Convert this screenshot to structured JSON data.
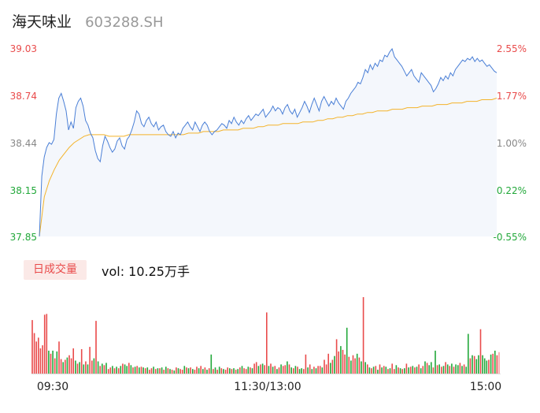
{
  "header": {
    "name": "海天味业",
    "code": "603288.SH"
  },
  "volume_panel": {
    "period_label": "日成交量",
    "vol_label": "vol: 10.25万手"
  },
  "colors": {
    "up": "#e94b4b",
    "down": "#22a83a",
    "price_line": "#4a7fd6",
    "avg_line": "#f3b32a",
    "area_fill": "#f4f7fc"
  },
  "chart_data": [
    {
      "type": "line",
      "title": "",
      "y_ticks_left": [
        "39.03",
        "38.74",
        "38.44",
        "38.15",
        "37.85"
      ],
      "y_ticks_right": [
        "2.55%",
        "1.77%",
        "1.00%",
        "0.22%",
        "-0.55%"
      ],
      "ylim": [
        37.85,
        39.03
      ],
      "x_ticks": [
        "09:30",
        "11:30/13:00",
        "15:00"
      ],
      "series": [
        {
          "values": [
            37.85,
            38.23,
            38.35,
            38.41,
            38.44,
            38.43,
            38.46,
            38.62,
            38.72,
            38.75,
            38.7,
            38.64,
            38.52,
            38.57,
            38.53,
            38.66,
            38.7,
            38.72,
            38.67,
            38.58,
            38.55,
            38.5,
            38.47,
            38.39,
            38.34,
            38.32,
            38.42,
            38.48,
            38.45,
            38.41,
            38.38,
            38.4,
            38.45,
            38.47,
            38.42,
            38.4,
            38.46,
            38.48,
            38.52,
            38.57,
            38.64,
            38.62,
            38.56,
            38.54,
            38.58,
            38.6,
            38.56,
            38.54,
            38.57,
            38.52,
            38.54,
            38.55,
            38.51,
            38.49,
            38.48,
            38.51,
            38.47,
            38.5,
            38.49,
            38.53,
            38.55,
            38.57,
            38.54,
            38.52,
            38.57,
            38.54,
            38.51,
            38.55,
            38.57,
            38.55,
            38.51,
            38.49,
            38.51,
            38.52,
            38.54,
            38.56,
            38.55,
            38.53,
            38.58,
            38.56,
            38.6,
            38.57,
            38.55,
            38.58,
            38.56,
            38.59,
            38.61,
            38.58,
            38.6,
            38.62,
            38.61,
            38.63,
            38.65,
            38.6,
            38.62,
            38.64,
            38.67,
            38.64,
            38.66,
            38.65,
            38.62,
            38.66,
            38.68,
            38.64,
            38.62,
            38.65,
            38.6,
            38.63,
            38.66,
            38.7,
            38.67,
            38.63,
            38.68,
            38.72,
            38.68,
            38.64,
            38.7,
            38.73,
            38.7,
            38.67,
            38.7,
            38.68,
            38.72,
            38.69,
            38.67,
            38.65,
            38.7,
            38.72,
            38.75,
            38.77,
            38.79,
            38.82,
            38.81,
            38.85,
            38.9,
            38.88,
            38.93,
            38.9,
            38.94,
            38.92,
            38.96,
            38.95,
            38.99,
            38.98,
            39.01,
            39.03,
            38.98,
            38.96,
            38.94,
            38.92,
            38.89,
            38.86,
            38.88,
            38.9,
            38.86,
            38.84,
            38.82,
            38.88,
            38.86,
            38.84,
            38.82,
            38.8,
            38.76,
            38.78,
            38.81,
            38.85,
            38.83,
            38.86,
            38.84,
            38.88,
            38.86,
            38.9,
            38.92,
            38.94,
            38.96,
            38.95,
            38.97,
            38.96,
            38.98,
            38.95,
            38.97,
            38.95,
            38.96,
            38.94,
            38.92,
            38.93,
            38.91,
            38.89,
            38.88
          ],
          "avg_values": [
            37.85,
            38.1,
            38.2,
            38.27,
            38.33,
            38.37,
            38.41,
            38.44,
            38.46,
            38.48,
            38.49,
            38.49,
            38.49,
            38.49,
            38.48,
            38.48,
            38.48,
            38.48,
            38.49,
            38.49,
            38.49,
            38.49,
            38.49,
            38.49,
            38.49,
            38.49,
            38.49,
            38.49,
            38.49,
            38.49,
            38.5,
            38.5,
            38.5,
            38.51,
            38.51,
            38.51,
            38.51,
            38.52,
            38.52,
            38.52,
            38.52,
            38.53,
            38.53,
            38.53,
            38.54,
            38.54,
            38.55,
            38.55,
            38.55,
            38.56,
            38.56,
            38.56,
            38.56,
            38.57,
            38.57,
            38.57,
            38.58,
            38.58,
            38.59,
            38.59,
            38.6,
            38.6,
            38.61,
            38.61,
            38.62,
            38.62,
            38.63,
            38.63,
            38.64,
            38.64,
            38.64,
            38.65,
            38.65,
            38.65,
            38.66,
            38.66,
            38.66,
            38.67,
            38.67,
            38.67,
            38.68,
            38.68,
            38.68,
            38.69,
            38.69,
            38.69,
            38.7,
            38.7,
            38.7,
            38.71,
            38.71,
            38.71,
            38.72
          ]
        }
      ]
    },
    {
      "type": "bar",
      "title": "",
      "note": "per-minute volume bars, relative heights (red=up, green=down)",
      "values": [
        0.7,
        0.53,
        0.42,
        0.47,
        0.33,
        0.37,
        0.77,
        0.78,
        0.3,
        0.26,
        0.3,
        0.2,
        0.29,
        0.42,
        0.19,
        0.15,
        0.18,
        0.21,
        0.24,
        0.2,
        0.33,
        0.17,
        0.13,
        0.15,
        0.32,
        0.12,
        0.16,
        0.12,
        0.35,
        0.17,
        0.2,
        0.69,
        0.16,
        0.1,
        0.13,
        0.11,
        0.14,
        0.06,
        0.08,
        0.1,
        0.07,
        0.09,
        0.07,
        0.1,
        0.13,
        0.12,
        0.1,
        0.14,
        0.11,
        0.08,
        0.09,
        0.1,
        0.08,
        0.09,
        0.08,
        0.07,
        0.08,
        0.05,
        0.07,
        0.09,
        0.06,
        0.07,
        0.07,
        0.08,
        0.05,
        0.09,
        0.07,
        0.06,
        0.05,
        0.04,
        0.08,
        0.07,
        0.06,
        0.05,
        0.1,
        0.08,
        0.07,
        0.08,
        0.06,
        0.05,
        0.09,
        0.07,
        0.1,
        0.06,
        0.08,
        0.05,
        0.07,
        0.25,
        0.06,
        0.08,
        0.05,
        0.09,
        0.07,
        0.06,
        0.05,
        0.08,
        0.07,
        0.06,
        0.07,
        0.05,
        0.06,
        0.08,
        0.1,
        0.07,
        0.06,
        0.09,
        0.08,
        0.07,
        0.13,
        0.15,
        0.1,
        0.12,
        0.13,
        0.11,
        0.8,
        0.1,
        0.13,
        0.09,
        0.1,
        0.06,
        0.08,
        0.12,
        0.1,
        0.11,
        0.16,
        0.12,
        0.08,
        0.07,
        0.1,
        0.09,
        0.06,
        0.07,
        0.06,
        0.25,
        0.08,
        0.12,
        0.06,
        0.09,
        0.07,
        0.1,
        0.1,
        0.08,
        0.18,
        0.12,
        0.26,
        0.14,
        0.18,
        0.23,
        0.45,
        0.29,
        0.36,
        0.31,
        0.25,
        0.6,
        0.22,
        0.17,
        0.24,
        0.2,
        0.26,
        0.21,
        0.16,
        1.0,
        0.15,
        0.12,
        0.08,
        0.07,
        0.09,
        0.1,
        0.05,
        0.12,
        0.08,
        0.1,
        0.09,
        0.06,
        0.07,
        0.13,
        0.06,
        0.11,
        0.08,
        0.07,
        0.06,
        0.07,
        0.13,
        0.08,
        0.09,
        0.1,
        0.08,
        0.09,
        0.12,
        0.07,
        0.1,
        0.16,
        0.14,
        0.11,
        0.15,
        0.08,
        0.3,
        0.11,
        0.12,
        0.09,
        0.1,
        0.15,
        0.12,
        0.1,
        0.13,
        0.09,
        0.12,
        0.11,
        0.14,
        0.1,
        0.12,
        0.09,
        0.52,
        0.2,
        0.24,
        0.23,
        0.19,
        0.24,
        0.58,
        0.24,
        0.2,
        0.17,
        0.18,
        0.25,
        0.26,
        0.3,
        0.24,
        0.28
      ],
      "directions": [
        "u",
        "u",
        "u",
        "u",
        "u",
        "u",
        "u",
        "u",
        "d",
        "u",
        "d",
        "u",
        "d",
        "u",
        "u",
        "d",
        "u",
        "d",
        "u",
        "u",
        "u",
        "d",
        "u",
        "d",
        "u",
        "d",
        "u",
        "d",
        "u",
        "u",
        "d",
        "u",
        "d",
        "u",
        "d",
        "u",
        "d",
        "u",
        "u",
        "d",
        "u",
        "d",
        "u",
        "d",
        "u",
        "d",
        "d",
        "u",
        "d",
        "u",
        "d",
        "u",
        "d",
        "u",
        "d",
        "u",
        "d",
        "u",
        "u",
        "d",
        "u",
        "d",
        "u",
        "d",
        "u",
        "d",
        "u",
        "d",
        "u",
        "d",
        "u",
        "d",
        "u",
        "u",
        "d",
        "u",
        "d",
        "u",
        "d",
        "u",
        "u",
        "d",
        "u",
        "d",
        "u",
        "d",
        "u",
        "d",
        "u",
        "d",
        "u",
        "d",
        "u",
        "d",
        "u",
        "u",
        "d",
        "u",
        "d",
        "u",
        "d",
        "u",
        "d",
        "u",
        "u",
        "d",
        "u",
        "d",
        "u",
        "u",
        "d",
        "u",
        "d",
        "u",
        "u",
        "d",
        "u",
        "d",
        "u",
        "d",
        "u",
        "d",
        "u",
        "u",
        "d",
        "u",
        "d",
        "u",
        "d",
        "u",
        "d",
        "d",
        "u",
        "u",
        "d",
        "u",
        "d",
        "u",
        "d",
        "u",
        "u",
        "d",
        "u",
        "u",
        "u",
        "d",
        "u",
        "d",
        "u",
        "u",
        "d",
        "u",
        "u",
        "d",
        "u",
        "d",
        "u",
        "u",
        "d",
        "u",
        "d",
        "u",
        "d",
        "u",
        "d",
        "u",
        "d",
        "u",
        "d",
        "u",
        "d",
        "u",
        "d",
        "u",
        "d",
        "u",
        "u",
        "d",
        "u",
        "d",
        "u",
        "d",
        "u",
        "d",
        "u",
        "d",
        "u",
        "d",
        "u",
        "d",
        "u",
        "d",
        "u",
        "d",
        "d",
        "u",
        "d",
        "u",
        "d",
        "u",
        "d",
        "u",
        "d",
        "u",
        "d",
        "u",
        "d",
        "d",
        "u",
        "d",
        "u",
        "d",
        "d",
        "u",
        "d",
        "u",
        "d",
        "d",
        "u",
        "d",
        "d",
        "d",
        "u",
        "d",
        "u",
        "d",
        "u"
      ]
    }
  ]
}
